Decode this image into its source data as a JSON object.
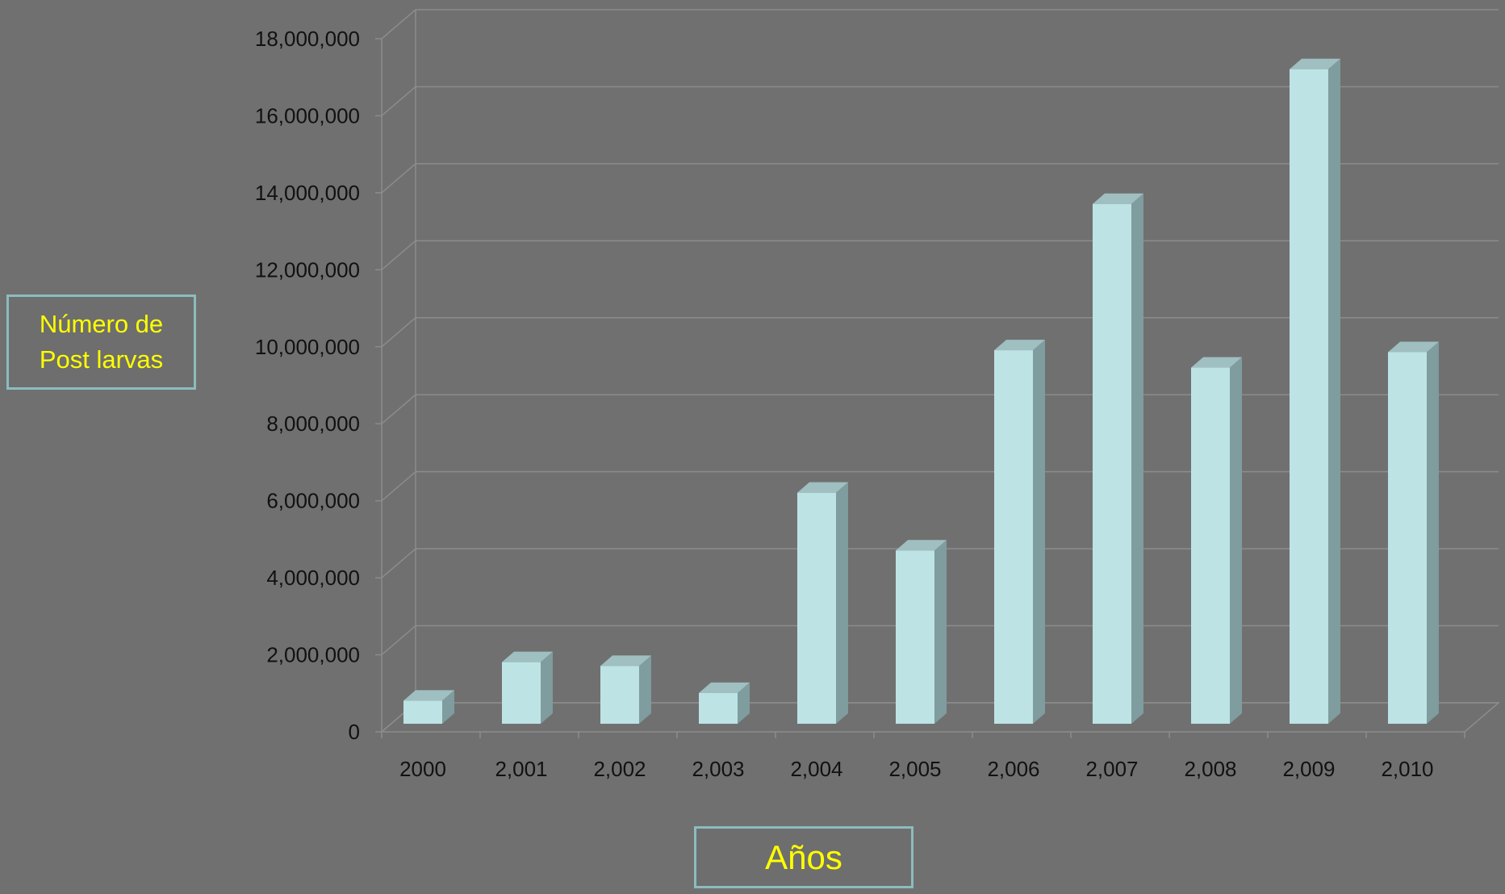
{
  "chart_data": {
    "type": "bar",
    "categories": [
      "2000",
      "2,001",
      "2,002",
      "2,003",
      "2,004",
      "2,005",
      "2,006",
      "2,007",
      "2,008",
      "2,009",
      "2,010"
    ],
    "values": [
      600000,
      1600000,
      1500000,
      800000,
      6000000,
      4500000,
      9700000,
      13500000,
      9250000,
      17000000,
      9650000
    ],
    "ylim": [
      0,
      18000000
    ],
    "yticks": [
      0,
      2000000,
      4000000,
      6000000,
      8000000,
      10000000,
      12000000,
      14000000,
      16000000,
      18000000
    ],
    "ytick_labels": [
      "0",
      "2,000,000",
      "4,000,000",
      "6,000,000",
      "8,000,000",
      "10,000,000",
      "12,000,000",
      "14,000,000",
      "16,000,000",
      "18,000,000"
    ],
    "ylabel": "Número de Post larvas",
    "ylabel_lines": [
      "Número de",
      "Post larvas"
    ],
    "xlabel": "Años",
    "grid": true,
    "legend": "none",
    "style": "3d-column"
  },
  "colors": {
    "background": "#707070",
    "bar_front": "#bde3e5",
    "bar_side": "#7f9c9e",
    "bar_top": "#9fbfc1",
    "grid": "#8c8c8c",
    "axis_label_text": "#ffff00",
    "axis_label_border": "#8cbcbc",
    "tick_text": "#111111"
  }
}
